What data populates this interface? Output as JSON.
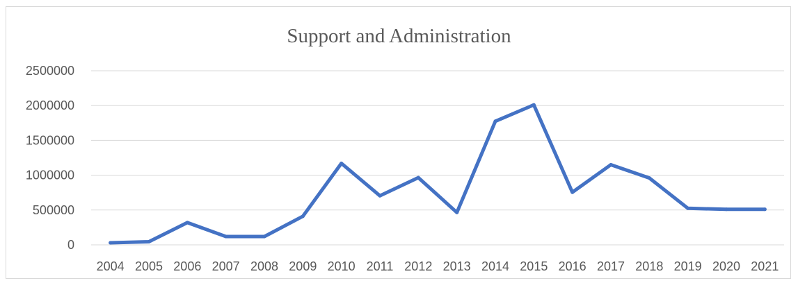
{
  "chart_data": {
    "type": "line",
    "title": "Support and Administration",
    "xlabel": "",
    "ylabel": "",
    "categories": [
      "2004",
      "2005",
      "2006",
      "2007",
      "2008",
      "2009",
      "2010",
      "2011",
      "2012",
      "2013",
      "2014",
      "2015",
      "2016",
      "2017",
      "2018",
      "2019",
      "2020",
      "2021"
    ],
    "series": [
      {
        "values": [
          30000,
          45000,
          320000,
          120000,
          120000,
          410000,
          1170000,
          705000,
          965000,
          465000,
          1775000,
          2010000,
          755000,
          1150000,
          960000,
          525000,
          510000,
          510000
        ]
      }
    ],
    "yticks": [
      "0",
      "500000",
      "1000000",
      "1500000",
      "2000000",
      "2500000"
    ],
    "ylim": [
      0,
      2500000
    ],
    "grid": true,
    "legend": "none",
    "colors": {
      "line": "#4472c4",
      "grid": "#d9d9d9",
      "axis_text": "#595959"
    }
  }
}
